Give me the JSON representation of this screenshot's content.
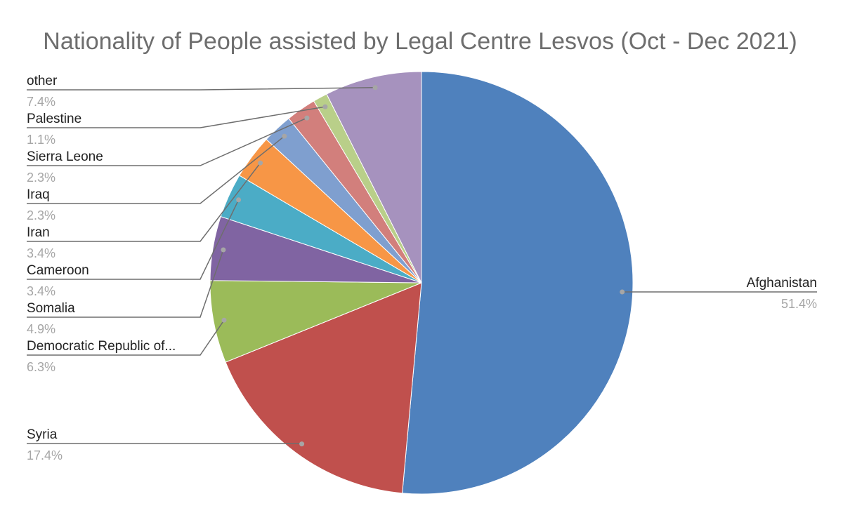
{
  "chart_data": {
    "type": "pie",
    "title": "Nationality of People assisted by Legal Centre Lesvos (Oct - Dec 2021)",
    "slices": [
      {
        "label": "Afghanistan",
        "value": 51.4,
        "display": "51.4%",
        "color": "#4f81bd"
      },
      {
        "label": "Syria",
        "value": 17.4,
        "display": "17.4%",
        "color": "#c0504d"
      },
      {
        "label": "Democratic Republic of...",
        "value": 6.3,
        "display": "6.3%",
        "color": "#9bbb59"
      },
      {
        "label": "Somalia",
        "value": 4.9,
        "display": "4.9%",
        "color": "#8064a2"
      },
      {
        "label": "Cameroon",
        "value": 3.4,
        "display": "3.4%",
        "color": "#4bacc6"
      },
      {
        "label": "Iran",
        "value": 3.4,
        "display": "3.4%",
        "color": "#f79646"
      },
      {
        "label": "Iraq",
        "value": 2.3,
        "display": "2.3%",
        "color": "#7f9fcf"
      },
      {
        "label": "Sierra Leone",
        "value": 2.3,
        "display": "2.3%",
        "color": "#d27f7c"
      },
      {
        "label": "Palestine",
        "value": 1.1,
        "display": "1.1%",
        "color": "#b9cf89"
      },
      {
        "label": "other",
        "value": 7.4,
        "display": "7.4%",
        "color": "#a692be"
      }
    ]
  }
}
